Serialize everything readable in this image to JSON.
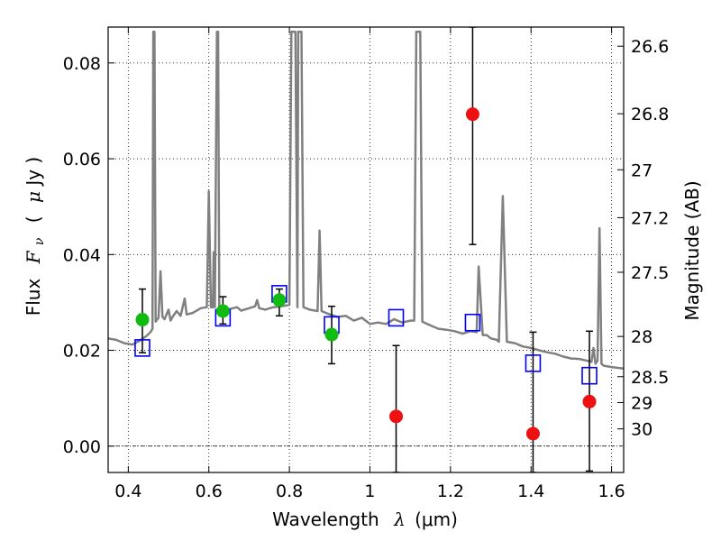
{
  "chart_data": {
    "type": "scatter",
    "xlabel": "Wavelength",
    "xlabel_symbol": "λ",
    "xlabel_unit": "(μm)",
    "ylabel": "Flux",
    "ylabel_symbol": "F",
    "ylabel_sub": "ν",
    "ylabel_unit_open": "(",
    "ylabel_unit_mu": "μ",
    "ylabel_unit_rest": "Jy )",
    "y2label": "Magnitude (AB)",
    "xlim": [
      0.35,
      1.63
    ],
    "ylim": [
      -0.0055,
      0.0875
    ],
    "grid": true,
    "grid_style": "dotted",
    "xticks": [
      0.4,
      0.6,
      0.8,
      1.0,
      1.2,
      1.4,
      1.6
    ],
    "xtick_labels": [
      "0.4",
      "0.6",
      "0.8",
      "1",
      "1.2",
      "1.4",
      "1.6"
    ],
    "yticks": [
      0.0,
      0.02,
      0.04,
      0.06,
      0.08
    ],
    "ytick_labels": [
      "0.00",
      "0.02",
      "0.04",
      "0.06",
      "0.08"
    ],
    "y2ticks": [
      {
        "label": "26.6",
        "flux": 0.0835
      },
      {
        "label": "26.8",
        "flux": 0.0694
      },
      {
        "label": "27",
        "flux": 0.0577
      },
      {
        "label": "27.2",
        "flux": 0.0477
      },
      {
        "label": "27.5",
        "flux": 0.0363
      },
      {
        "label": "28",
        "flux": 0.0229
      },
      {
        "label": "28.5",
        "flux": 0.0145
      },
      {
        "label": "29",
        "flux": 0.0091
      },
      {
        "label": "30",
        "flux": 0.0036
      }
    ],
    "colors": {
      "sed": "#808080",
      "model_flux": "#0000ff",
      "detection": "#11bb11",
      "non_detection": "#ee1111",
      "errorbar": "#000000"
    },
    "series": [
      {
        "kind": "line",
        "points": [
          [
            0.35,
            0.0225
          ],
          [
            0.37,
            0.0222
          ],
          [
            0.39,
            0.0215
          ],
          [
            0.41,
            0.0212
          ],
          [
            0.43,
            0.0221
          ],
          [
            0.445,
            0.023
          ],
          [
            0.455,
            0.0238
          ],
          [
            0.46,
            0.0245
          ],
          [
            0.462,
            0.0865
          ],
          [
            0.465,
            0.0865
          ],
          [
            0.468,
            0.026
          ],
          [
            0.475,
            0.0268
          ],
          [
            0.48,
            0.0365
          ],
          [
            0.485,
            0.027
          ],
          [
            0.49,
            0.0265
          ],
          [
            0.5,
            0.0285
          ],
          [
            0.505,
            0.0262
          ],
          [
            0.51,
            0.027
          ],
          [
            0.52,
            0.0282
          ],
          [
            0.53,
            0.0272
          ],
          [
            0.54,
            0.0308
          ],
          [
            0.545,
            0.0275
          ],
          [
            0.56,
            0.0278
          ],
          [
            0.58,
            0.0288
          ],
          [
            0.595,
            0.029
          ],
          [
            0.6,
            0.0532
          ],
          [
            0.605,
            0.029
          ],
          [
            0.61,
            0.029
          ],
          [
            0.612,
            0.0405
          ],
          [
            0.615,
            0.029
          ],
          [
            0.62,
            0.0865
          ],
          [
            0.623,
            0.0865
          ],
          [
            0.626,
            0.029
          ],
          [
            0.63,
            0.0282
          ],
          [
            0.645,
            0.0285
          ],
          [
            0.66,
            0.0288
          ],
          [
            0.67,
            0.029
          ],
          [
            0.68,
            0.0283
          ],
          [
            0.7,
            0.0288
          ],
          [
            0.715,
            0.0292
          ],
          [
            0.72,
            0.0305
          ],
          [
            0.725,
            0.0288
          ],
          [
            0.74,
            0.0285
          ],
          [
            0.76,
            0.029
          ],
          [
            0.78,
            0.0292
          ],
          [
            0.8,
            0.0295
          ],
          [
            0.805,
            0.0865
          ],
          [
            0.815,
            0.0865
          ],
          [
            0.82,
            0.029
          ],
          [
            0.822,
            0.0865
          ],
          [
            0.83,
            0.0865
          ],
          [
            0.835,
            0.029
          ],
          [
            0.85,
            0.0285
          ],
          [
            0.87,
            0.0282
          ],
          [
            0.875,
            0.045
          ],
          [
            0.88,
            0.0282
          ],
          [
            0.9,
            0.0275
          ],
          [
            0.92,
            0.027
          ],
          [
            0.94,
            0.0272
          ],
          [
            0.96,
            0.0262
          ],
          [
            0.98,
            0.0268
          ],
          [
            1.0,
            0.0255
          ],
          [
            1.02,
            0.0258
          ],
          [
            1.04,
            0.0255
          ],
          [
            1.06,
            0.0265
          ],
          [
            1.08,
            0.0258
          ],
          [
            1.1,
            0.0262
          ],
          [
            1.11,
            0.0262
          ],
          [
            1.115,
            0.0865
          ],
          [
            1.125,
            0.0865
          ],
          [
            1.13,
            0.026
          ],
          [
            1.15,
            0.0252
          ],
          [
            1.17,
            0.0245
          ],
          [
            1.19,
            0.0243
          ],
          [
            1.21,
            0.024
          ],
          [
            1.23,
            0.0235
          ],
          [
            1.25,
            0.024
          ],
          [
            1.265,
            0.0238
          ],
          [
            1.27,
            0.0375
          ],
          [
            1.28,
            0.0232
          ],
          [
            1.29,
            0.0232
          ],
          [
            1.3,
            0.0225
          ],
          [
            1.315,
            0.0222
          ],
          [
            1.32,
            0.0218
          ],
          [
            1.33,
            0.0522
          ],
          [
            1.34,
            0.0218
          ],
          [
            1.36,
            0.0215
          ],
          [
            1.38,
            0.0208
          ],
          [
            1.4,
            0.0205
          ],
          [
            1.42,
            0.02
          ],
          [
            1.44,
            0.0196
          ],
          [
            1.46,
            0.0193
          ],
          [
            1.48,
            0.0187
          ],
          [
            1.5,
            0.0183
          ],
          [
            1.52,
            0.0182
          ],
          [
            1.54,
            0.0178
          ],
          [
            1.55,
            0.0176
          ],
          [
            1.555,
            0.0205
          ],
          [
            1.56,
            0.0172
          ],
          [
            1.565,
            0.0178
          ],
          [
            1.57,
            0.0455
          ],
          [
            1.575,
            0.0172
          ],
          [
            1.58,
            0.0168
          ],
          [
            1.6,
            0.0165
          ],
          [
            1.63,
            0.0162
          ]
        ]
      },
      {
        "kind": "model_flux",
        "marker": "open-square",
        "points": [
          [
            0.435,
            0.0205
          ],
          [
            0.635,
            0.0268
          ],
          [
            0.775,
            0.0318
          ],
          [
            0.905,
            0.0253
          ],
          [
            1.065,
            0.0268
          ],
          [
            1.255,
            0.0258
          ],
          [
            1.405,
            0.0173
          ],
          [
            1.545,
            0.0147
          ]
        ]
      },
      {
        "kind": "detection",
        "marker": "filled-circle",
        "points": [
          {
            "x": 0.435,
            "y": 0.0264,
            "ylo": 0.0195,
            "yhi": 0.0328
          },
          {
            "x": 0.635,
            "y": 0.0282,
            "ylo": 0.0255,
            "yhi": 0.0312
          },
          {
            "x": 0.775,
            "y": 0.0305,
            "ylo": 0.0272,
            "yhi": 0.0328
          },
          {
            "x": 0.905,
            "y": 0.0233,
            "ylo": 0.0172,
            "yhi": 0.0292
          }
        ]
      },
      {
        "kind": "non_detection",
        "marker": "filled-circle",
        "points": [
          {
            "x": 1.065,
            "y": 0.0062,
            "ylo": -0.0055,
            "yhi": 0.021
          },
          {
            "x": 1.255,
            "y": 0.0693,
            "ylo": 0.0421,
            "yhi": 0.0875
          },
          {
            "x": 1.405,
            "y": 0.0026,
            "ylo": -0.0055,
            "yhi": 0.0238
          },
          {
            "x": 1.545,
            "y": 0.0093,
            "ylo": -0.0052,
            "yhi": 0.024
          }
        ]
      }
    ]
  }
}
